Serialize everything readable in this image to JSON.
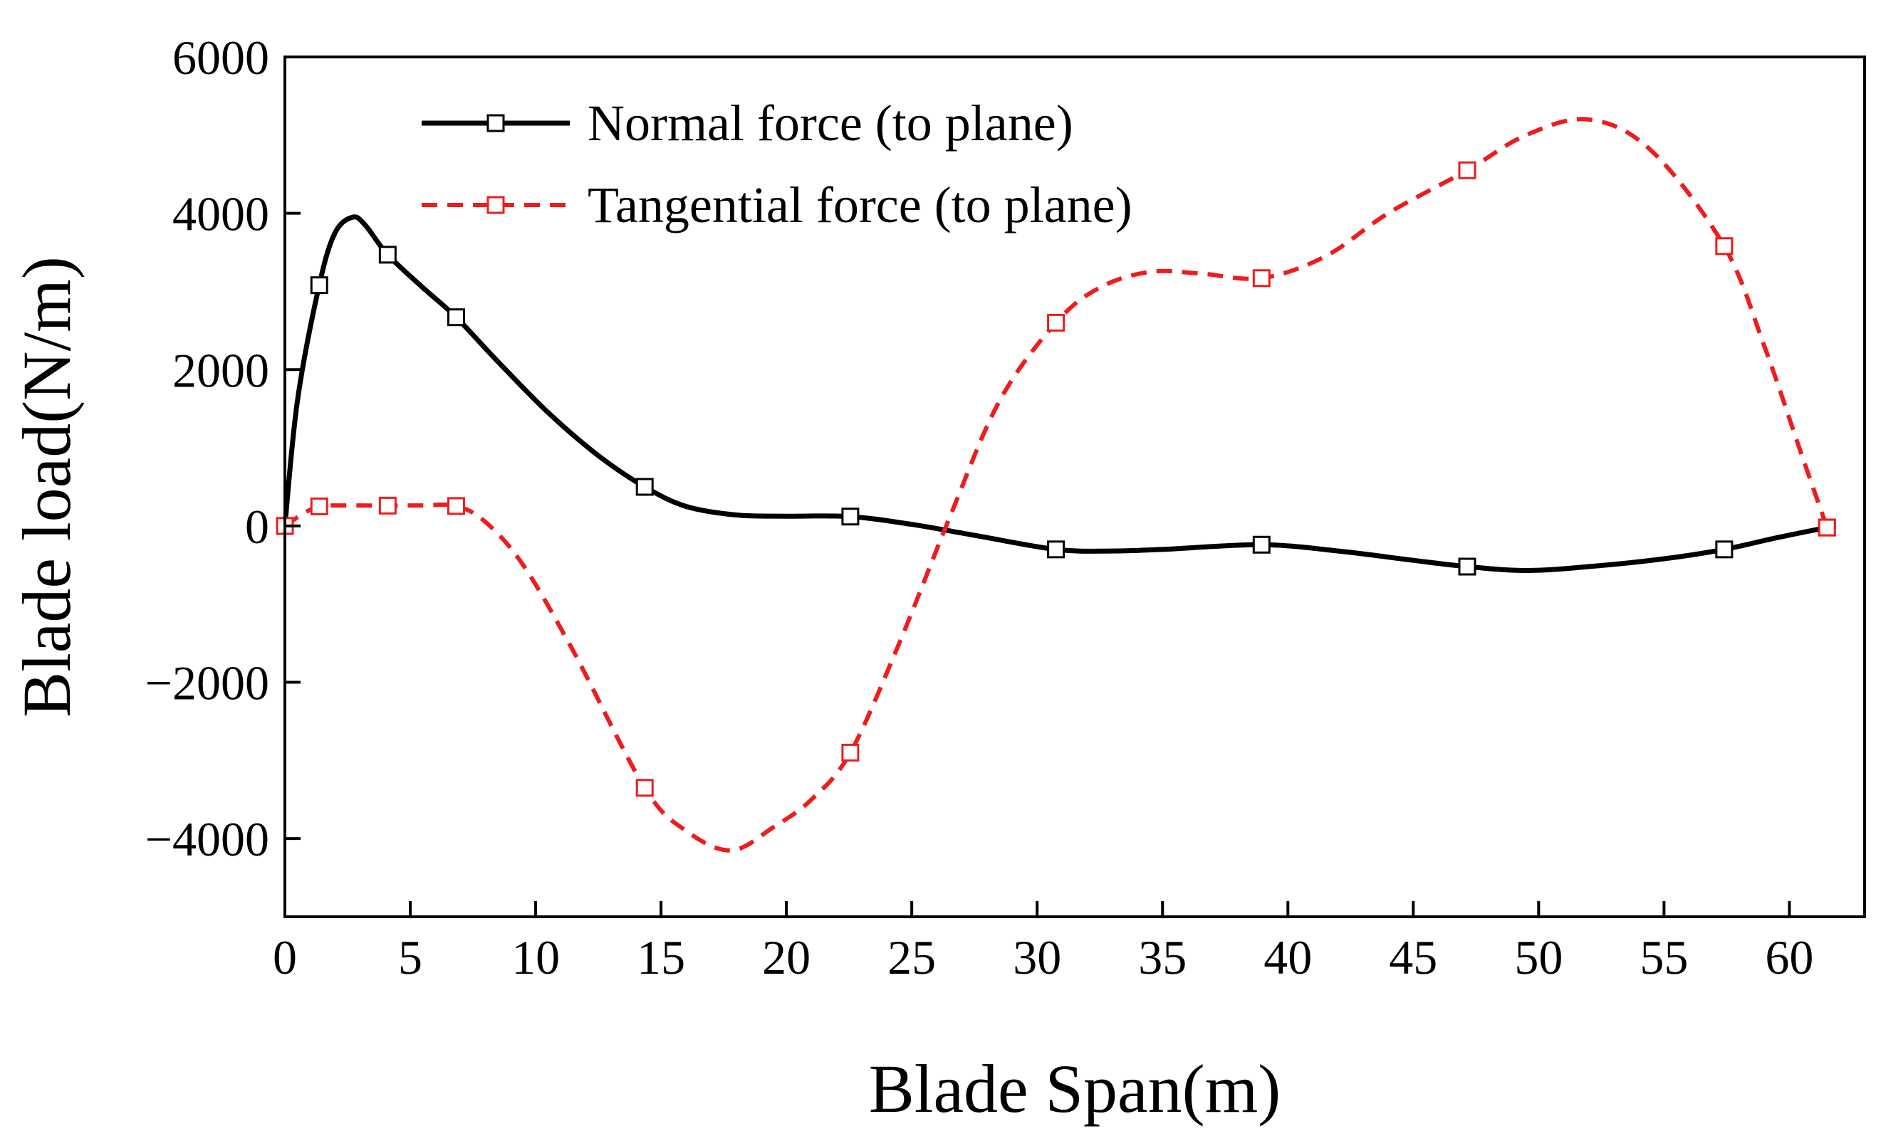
{
  "chart_data": {
    "type": "line",
    "title": "",
    "xlabel": "Blade Span(m)",
    "ylabel": "Blade load(N/m)",
    "xlim": [
      0,
      63
    ],
    "ylim": [
      -5000,
      6000
    ],
    "x_ticks": [
      "0",
      "5",
      "10",
      "15",
      "20",
      "25",
      "30",
      "35",
      "40",
      "45",
      "50",
      "55",
      "60"
    ],
    "x_tick_values": [
      0,
      5,
      10,
      15,
      20,
      25,
      30,
      35,
      40,
      45,
      50,
      55,
      60
    ],
    "y_ticks": [
      "6000",
      "4000",
      "2000",
      "0",
      "−2000",
      "−4000"
    ],
    "y_tick_values": [
      6000,
      4000,
      2000,
      0,
      -2000,
      -4000
    ],
    "legend_position": "top-left",
    "series": [
      {
        "name": "Normal force (to plane)",
        "color": "#000000",
        "line_style": "solid",
        "marker": "open-square",
        "markers": {
          "x": [
            0,
            1.37,
            4.1,
            6.83,
            14.35,
            22.55,
            30.75,
            38.95,
            47.15,
            57.4,
            61.5
          ],
          "y": [
            0,
            3080,
            3470,
            2670,
            500,
            120,
            -300,
            -240,
            -520,
            -300,
            -20
          ]
        },
        "curve": {
          "x": [
            0,
            0.5,
            1.37,
            2.0,
            2.7,
            3.2,
            4.1,
            5.5,
            6.83,
            8.5,
            10.5,
            12.5,
            14.35,
            16.0,
            18.0,
            20.0,
            22.55,
            25.0,
            27.5,
            30.75,
            33.0,
            35.0,
            38.95,
            42.0,
            45.0,
            47.15,
            49.5,
            52.0,
            55.0,
            57.4,
            59.5,
            61.5
          ],
          "y": [
            0,
            1600,
            3080,
            3750,
            3950,
            3850,
            3470,
            3050,
            2670,
            2100,
            1450,
            900,
            500,
            250,
            140,
            125,
            120,
            20,
            -120,
            -300,
            -320,
            -300,
            -240,
            -320,
            -440,
            -520,
            -570,
            -520,
            -420,
            -300,
            -150,
            -20
          ]
        }
      },
      {
        "name": "Tangential force (to plane)",
        "color": "#ee1c1c",
        "line_style": "dashed",
        "marker": "open-square",
        "markers": {
          "x": [
            0,
            1.37,
            4.1,
            6.83,
            14.35,
            22.55,
            30.75,
            38.95,
            47.15,
            57.4,
            61.5
          ],
          "y": [
            0,
            250,
            260,
            255,
            -3350,
            -2900,
            2600,
            3170,
            4550,
            3580,
            -20
          ]
        },
        "curve": {
          "x": [
            0,
            0.7,
            1.37,
            2.5,
            4.1,
            5.5,
            6.83,
            8.0,
            9.5,
            11.5,
            14.35,
            16.0,
            17.8,
            19.5,
            21.0,
            22.55,
            24.5,
            26.5,
            28.5,
            30.75,
            32.5,
            34.5,
            36.5,
            38.95,
            41.5,
            44.0,
            47.15,
            49.5,
            52.0,
            54.5,
            57.4,
            59.0,
            60.5,
            61.5
          ],
          "y": [
            0,
            150,
            250,
            262,
            260,
            262,
            255,
            50,
            -500,
            -1600,
            -3350,
            -3900,
            -4150,
            -3850,
            -3500,
            -2900,
            -1500,
            100,
            1600,
            2600,
            3050,
            3250,
            3230,
            3170,
            3450,
            4000,
            4550,
            5000,
            5200,
            4800,
            3580,
            2300,
            900,
            -20
          ]
        }
      }
    ]
  }
}
